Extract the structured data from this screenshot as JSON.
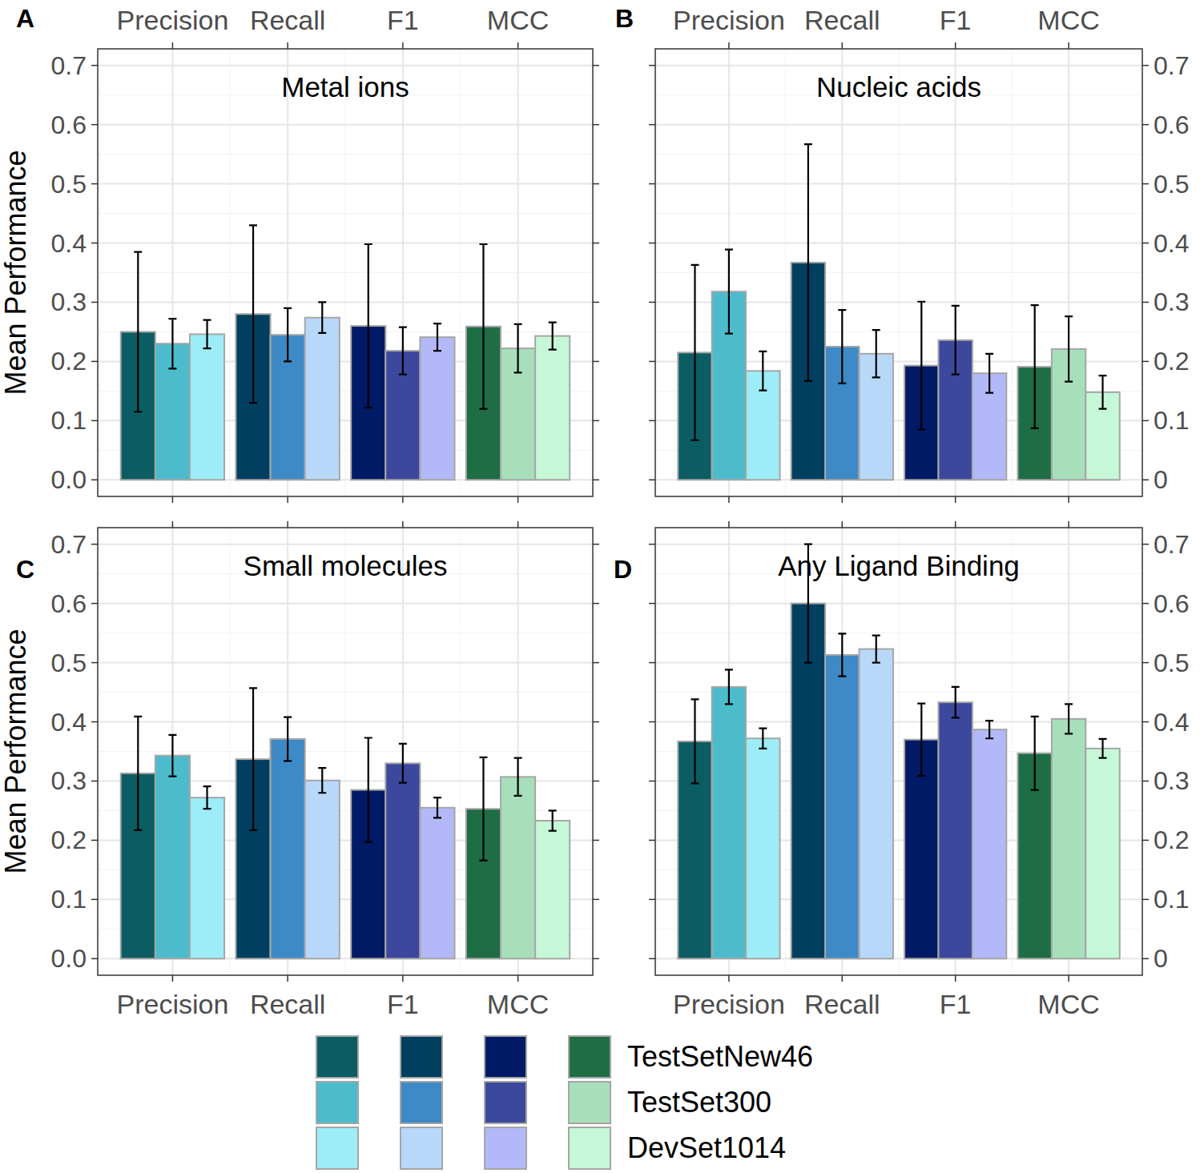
{
  "chart_data": [
    {
      "type": "bar",
      "panel": "A",
      "title": "Metal ions",
      "y_label": "Mean Performance",
      "categories": [
        "Precision",
        "Recall",
        "F1",
        "MCC"
      ],
      "ylim": [
        -0.028,
        0.728
      ],
      "yticks": [
        {
          "value": 0,
          "label": "0.0"
        },
        0.1,
        0.2,
        0.3,
        0.4,
        0.5,
        0.6,
        0.7
      ],
      "grid": true,
      "legend": "bottom",
      "series": [
        {
          "name": "TestSetNew46",
          "colors": [
            "#0b5d63",
            "#003f5f",
            "#001a66",
            "#1f6d45"
          ],
          "values": [
            0.25,
            0.28,
            0.26,
            0.259
          ],
          "errors": [
            0.135,
            0.15,
            0.138,
            0.139
          ]
        },
        {
          "name": "TestSet300",
          "colors": [
            "#4cbccc",
            "#3e8ac6",
            "#3c479e",
            "#a6dfba"
          ],
          "values": [
            0.23,
            0.245,
            0.218,
            0.222
          ],
          "errors": [
            0.042,
            0.045,
            0.04,
            0.041
          ]
        },
        {
          "name": "DevSet1014",
          "colors": [
            "#9cedf8",
            "#b8d8f9",
            "#b3b8f8",
            "#c6f8d7"
          ],
          "values": [
            0.246,
            0.274,
            0.241,
            0.243
          ],
          "errors": [
            0.024,
            0.026,
            0.023,
            0.023
          ]
        }
      ]
    },
    {
      "type": "bar",
      "panel": "B",
      "title": "Nucleic acids",
      "categories": [
        "Precision",
        "Recall",
        "F1",
        "MCC"
      ],
      "ylim": [
        -0.028,
        0.728
      ],
      "yticks": [
        0,
        0.1,
        0.2,
        0.3,
        0.4,
        0.5,
        0.6,
        0.7
      ],
      "grid": true,
      "legend": "bottom",
      "series": [
        {
          "name": "TestSetNew46",
          "colors": [
            "#0b5d63",
            "#003f5f",
            "#001a66",
            "#1f6d45"
          ],
          "values": [
            0.215,
            0.367,
            0.193,
            0.191
          ],
          "errors": [
            0.148,
            0.2,
            0.108,
            0.104
          ]
        },
        {
          "name": "TestSet300",
          "colors": [
            "#4cbccc",
            "#3e8ac6",
            "#3c479e",
            "#a6dfba"
          ],
          "values": [
            0.318,
            0.225,
            0.236,
            0.221
          ],
          "errors": [
            0.071,
            0.062,
            0.058,
            0.055
          ]
        },
        {
          "name": "DevSet1014",
          "colors": [
            "#9cedf8",
            "#b8d8f9",
            "#b3b8f8",
            "#c6f8d7"
          ],
          "values": [
            0.184,
            0.213,
            0.18,
            0.148
          ],
          "errors": [
            0.033,
            0.04,
            0.033,
            0.028
          ]
        }
      ]
    },
    {
      "type": "bar",
      "panel": "C",
      "title": "Small molecules",
      "y_label": "Mean Performance",
      "categories": [
        "Precision",
        "Recall",
        "F1",
        "MCC"
      ],
      "ylim": [
        -0.028,
        0.728
      ],
      "yticks": [
        {
          "value": 0,
          "label": "0.0"
        },
        0.1,
        0.2,
        0.3,
        0.4,
        0.5,
        0.6,
        0.7
      ],
      "grid": true,
      "legend": "bottom",
      "series": [
        {
          "name": "TestSetNew46",
          "colors": [
            "#0b5d63",
            "#003f5f",
            "#001a66",
            "#1f6d45"
          ],
          "values": [
            0.313,
            0.337,
            0.285,
            0.253
          ],
          "errors": [
            0.096,
            0.12,
            0.088,
            0.087
          ]
        },
        {
          "name": "TestSet300",
          "colors": [
            "#4cbccc",
            "#3e8ac6",
            "#3c479e",
            "#a6dfba"
          ],
          "values": [
            0.343,
            0.371,
            0.33,
            0.307
          ],
          "errors": [
            0.035,
            0.037,
            0.033,
            0.032
          ]
        },
        {
          "name": "DevSet1014",
          "colors": [
            "#9cedf8",
            "#b8d8f9",
            "#b3b8f8",
            "#c6f8d7"
          ],
          "values": [
            0.272,
            0.301,
            0.255,
            0.233
          ],
          "errors": [
            0.019,
            0.021,
            0.017,
            0.017
          ]
        }
      ]
    },
    {
      "type": "bar",
      "panel": "D",
      "title": "Any Ligand Binding",
      "categories": [
        "Precision",
        "Recall",
        "F1",
        "MCC"
      ],
      "ylim": [
        -0.028,
        0.728
      ],
      "yticks": [
        0,
        0.1,
        0.2,
        0.3,
        0.4,
        0.5,
        0.6,
        0.7
      ],
      "grid": true,
      "legend": "bottom",
      "series": [
        {
          "name": "TestSetNew46",
          "colors": [
            "#0b5d63",
            "#003f5f",
            "#001a66",
            "#1f6d45"
          ],
          "values": [
            0.367,
            0.6,
            0.37,
            0.347
          ],
          "errors": [
            0.071,
            0.1,
            0.061,
            0.062
          ]
        },
        {
          "name": "TestSet300",
          "colors": [
            "#4cbccc",
            "#3e8ac6",
            "#3c479e",
            "#a6dfba"
          ],
          "values": [
            0.459,
            0.513,
            0.433,
            0.405
          ],
          "errors": [
            0.029,
            0.036,
            0.026,
            0.025
          ]
        },
        {
          "name": "DevSet1014",
          "colors": [
            "#9cedf8",
            "#b8d8f9",
            "#b3b8f8",
            "#c6f8d7"
          ],
          "values": [
            0.372,
            0.523,
            0.387,
            0.355
          ],
          "errors": [
            0.017,
            0.023,
            0.015,
            0.016
          ]
        }
      ]
    }
  ]
}
